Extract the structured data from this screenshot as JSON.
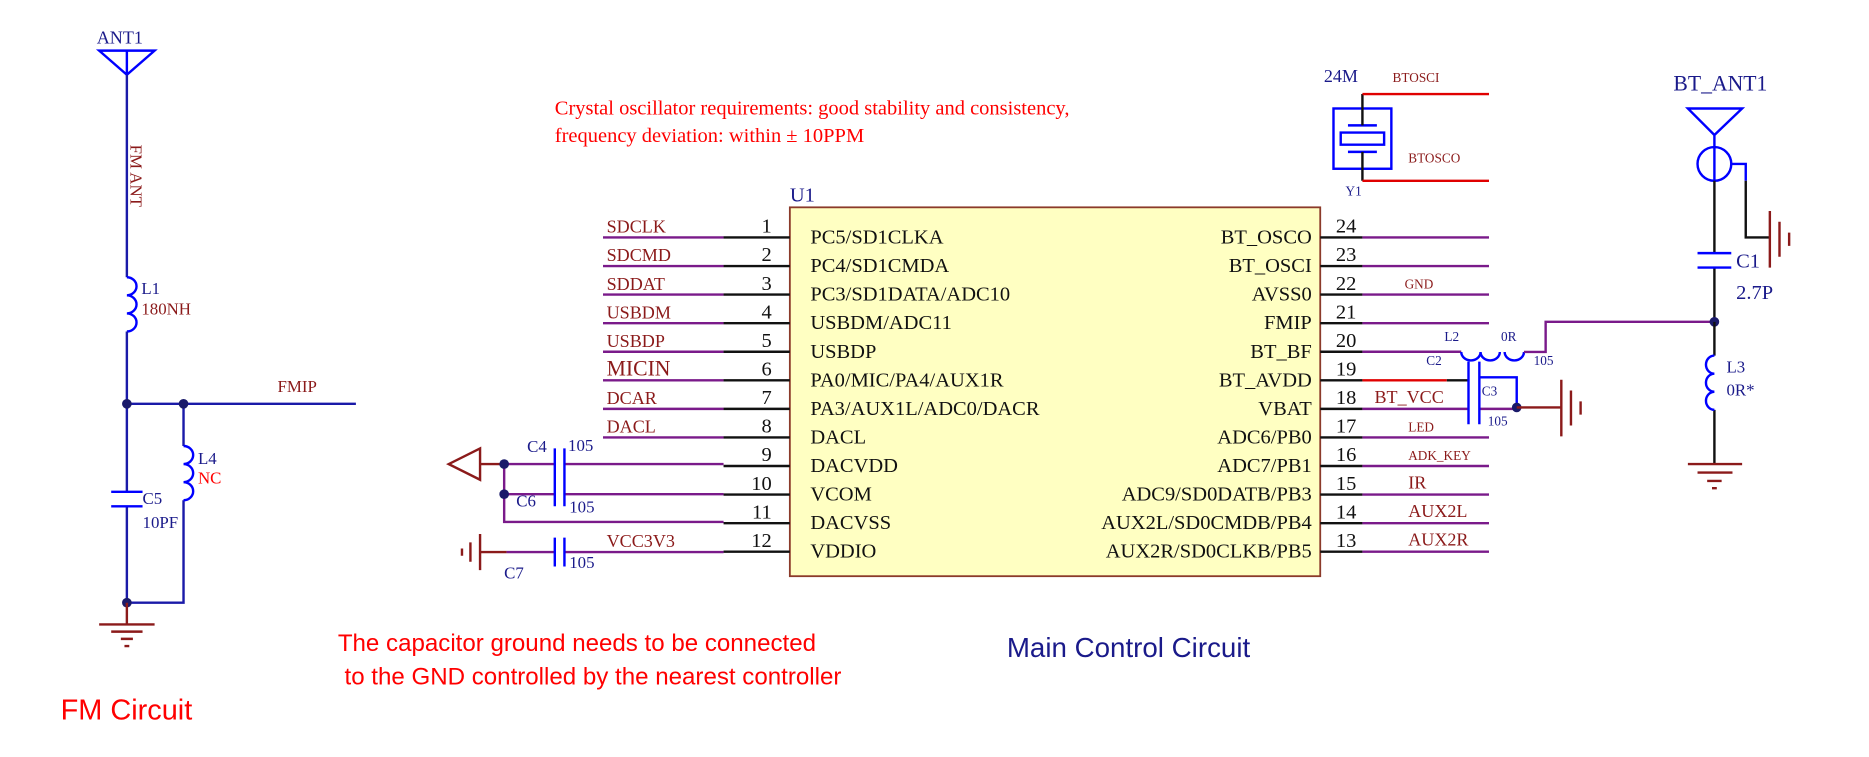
{
  "colors": {
    "wire_blue": "#1a1aa8",
    "wire_purple": "#7a1a8a",
    "net_label": "#8b1a1a",
    "note_red": "#ff0000",
    "chip_fill": "#ffffc2",
    "chip_border": "#8b3a2a",
    "title_navy": "#1a1a8a",
    "component": "#0000ff"
  },
  "fm": {
    "antenna": "ANT1",
    "ant_net": "FM ANT",
    "l1": {
      "ref": "L1",
      "value": "180NH"
    },
    "net": "FMIP",
    "c5": {
      "ref": "C5",
      "value": "10PF"
    },
    "l4": {
      "ref": "L4",
      "value": "NC"
    },
    "title": "FM Circuit"
  },
  "note_crystal": [
    "Crystal oscillator requirements: good stability and consistency,",
    "frequency deviation: within ± 10PPM"
  ],
  "note_ground": [
    "The capacitor ground needs to be connected",
    " to the GND controlled by the nearest controller"
  ],
  "main_title": "Main Control Circuit",
  "u1": {
    "ref": "U1",
    "left_pins": [
      {
        "num": "1",
        "name": "PC5/SD1CLKA",
        "net": "SDCLK"
      },
      {
        "num": "2",
        "name": "PC4/SD1CMDA",
        "net": "SDCMD"
      },
      {
        "num": "3",
        "name": "PC3/SD1DATA/ADC10",
        "net": "SDDAT"
      },
      {
        "num": "4",
        "name": "USBDM/ADC11",
        "net": "USBDM"
      },
      {
        "num": "5",
        "name": "USBDP",
        "net": "USBDP"
      },
      {
        "num": "6",
        "name": "PA0/MIC/PA4/AUX1R",
        "net": "MICIN"
      },
      {
        "num": "7",
        "name": "PA3/AUX1L/ADC0/DACR",
        "net": "DCAR"
      },
      {
        "num": "8",
        "name": "DACL",
        "net": "DACL"
      },
      {
        "num": "9",
        "name": "DACVDD",
        "net": ""
      },
      {
        "num": "10",
        "name": "VCOM",
        "net": ""
      },
      {
        "num": "11",
        "name": "DACVSS",
        "net": ""
      },
      {
        "num": "12",
        "name": "VDDIO",
        "net": "VCC3V3"
      }
    ],
    "right_pins": [
      {
        "num": "24",
        "name": "BT_OSCO",
        "net": ""
      },
      {
        "num": "23",
        "name": "BT_OSCI",
        "net": ""
      },
      {
        "num": "22",
        "name": "AVSS0",
        "net": "GND"
      },
      {
        "num": "21",
        "name": "FMIP",
        "net": ""
      },
      {
        "num": "20",
        "name": "BT_BF",
        "net": ""
      },
      {
        "num": "19",
        "name": "BT_AVDD",
        "net": ""
      },
      {
        "num": "18",
        "name": "VBAT",
        "net": "BT_VCC"
      },
      {
        "num": "17",
        "name": "ADC6/PB0",
        "net": "LED"
      },
      {
        "num": "16",
        "name": "ADC7/PB1",
        "net": "ADK_KEY"
      },
      {
        "num": "15",
        "name": "ADC9/SD0DATB/PB3",
        "net": "IR"
      },
      {
        "num": "14",
        "name": "AUX2L/SD0CMDB/PB4",
        "net": "AUX2L"
      },
      {
        "num": "13",
        "name": "AUX2R/SD0CLKB/PB5",
        "net": "AUX2R"
      }
    ]
  },
  "caps_left": {
    "c4": {
      "ref": "C4",
      "value": "105"
    },
    "c6": {
      "ref": "C6",
      "value": "105"
    },
    "c7": {
      "ref": "C7",
      "value": "105"
    }
  },
  "crystal": {
    "value": "24M",
    "ref": "Y1",
    "net_in": "BTOSCI",
    "net_out": "BTOSCO"
  },
  "bt_filter": {
    "l2": {
      "ref": "L2",
      "value": "0R"
    },
    "c2": {
      "ref": "C2",
      "value": "105"
    },
    "c3": {
      "ref": "C3",
      "value": "105"
    }
  },
  "bt_ant": {
    "antenna": "BT_ANT1",
    "c1": {
      "ref": "C1",
      "value": "2.7P"
    },
    "l3": {
      "ref": "L3",
      "value": "0R*"
    }
  }
}
